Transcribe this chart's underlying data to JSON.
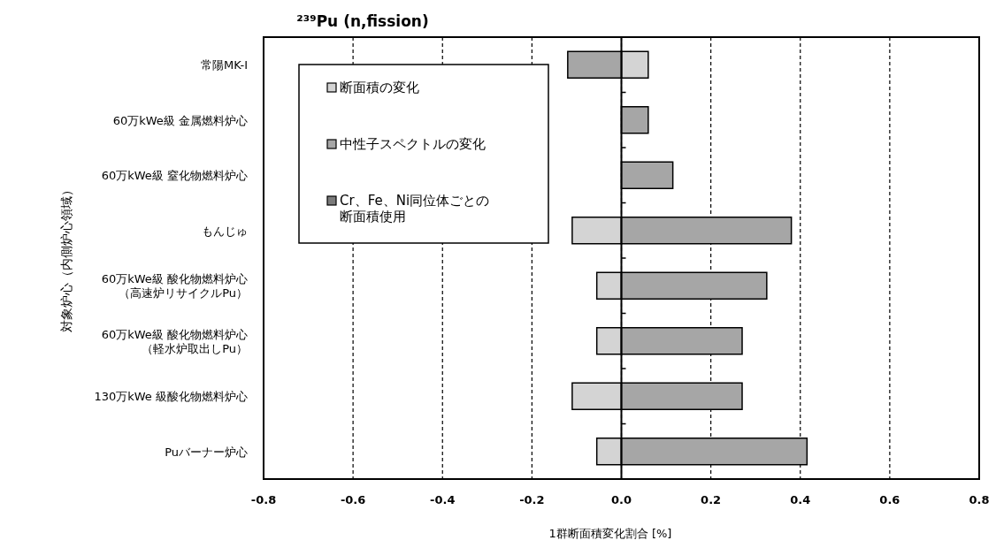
{
  "chart_data": {
    "type": "bar",
    "orientation": "horizontal",
    "stacked": true,
    "title": "²³⁹Pu (n,fission)",
    "xlabel": "1群断面積変化割合 [%]",
    "ylabel": "対象炉心（内側炉心領域）",
    "categories": [
      "常陽MK-I",
      "60万kWe級 金属燃料炉心",
      "60万kWe級 窒化物燃料炉心",
      "もんじゅ",
      "60万kWe級 酸化物燃料炉心（高速炉リサイクルPu）",
      "60万kWe級 酸化物燃料炉心（軽水炉取出しPu）",
      "130万kWe 級酸化物燃料炉心",
      "Puバーナー炉心"
    ],
    "series": [
      {
        "name": "断面積の変化",
        "color": "#d4d4d4",
        "values": [
          0.06,
          null,
          null,
          -0.11,
          -0.055,
          -0.055,
          -0.11,
          -0.055
        ]
      },
      {
        "name": "中性子スペクトルの変化",
        "color": "#a6a6a6",
        "values": [
          -0.12,
          0.06,
          0.115,
          0.38,
          0.325,
          0.27,
          0.27,
          0.415
        ]
      },
      {
        "name": "Cr、Fe、Ni同位体ごとの断面積使用",
        "color": "#7a7a7a",
        "values": [
          null,
          null,
          null,
          null,
          null,
          null,
          null,
          null
        ]
      }
    ],
    "xlim": [
      -0.8,
      0.8
    ],
    "xticks": [
      {
        "value": -0.8,
        "label": "-0.8"
      },
      {
        "value": -0.6,
        "label": "-0.6"
      },
      {
        "value": -0.4,
        "label": "-0.4"
      },
      {
        "value": -0.2,
        "label": "-0.2"
      },
      {
        "value": 0,
        "label": "0.0"
      },
      {
        "value": 0.2,
        "label": "0.2"
      },
      {
        "value": 0.4,
        "label": "0.4"
      },
      {
        "value": 0.6,
        "label": "0.6"
      },
      {
        "value": 0.8,
        "label": "0.8"
      }
    ],
    "ref_lines": [
      {
        "axis": "x",
        "value": 0,
        "color": "#000000",
        "line_style": "solid"
      }
    ],
    "grid": "x",
    "legend": "top left"
  }
}
